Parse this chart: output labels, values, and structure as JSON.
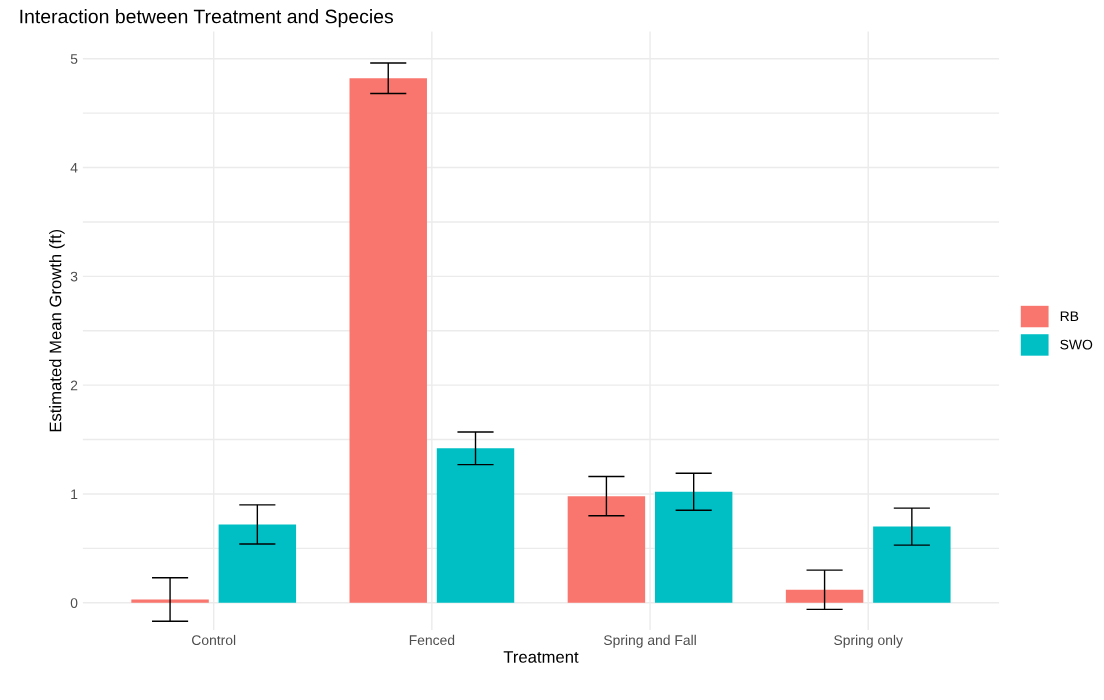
{
  "chart_data": {
    "type": "bar",
    "title": "Interaction between Treatment and Species",
    "xlabel": "Treatment",
    "ylabel": "Estimated Mean Growth (ft)",
    "categories": [
      "Control",
      "Fenced",
      "Spring and Fall",
      "Spring only"
    ],
    "series": [
      {
        "name": "RB",
        "color": "#f8766d",
        "values": [
          0.03,
          4.82,
          0.98,
          0.12
        ],
        "errors": [
          0.2,
          0.14,
          0.18,
          0.18
        ]
      },
      {
        "name": "SWO",
        "color": "#00bfc4",
        "values": [
          0.72,
          1.42,
          1.02,
          0.7
        ],
        "errors": [
          0.18,
          0.15,
          0.17,
          0.17
        ]
      }
    ],
    "ylim": [
      -0.25,
      5.25
    ],
    "yticks": [
      0,
      {
        "value": 0.5,
        "label": null
      },
      1,
      {
        "value": 1.5,
        "label": null
      },
      2,
      {
        "value": 2.5,
        "label": null
      },
      3,
      {
        "value": 3.5,
        "label": null
      },
      4,
      {
        "value": 4.5,
        "label": null
      },
      5
    ],
    "grid": true,
    "legend": "right"
  }
}
